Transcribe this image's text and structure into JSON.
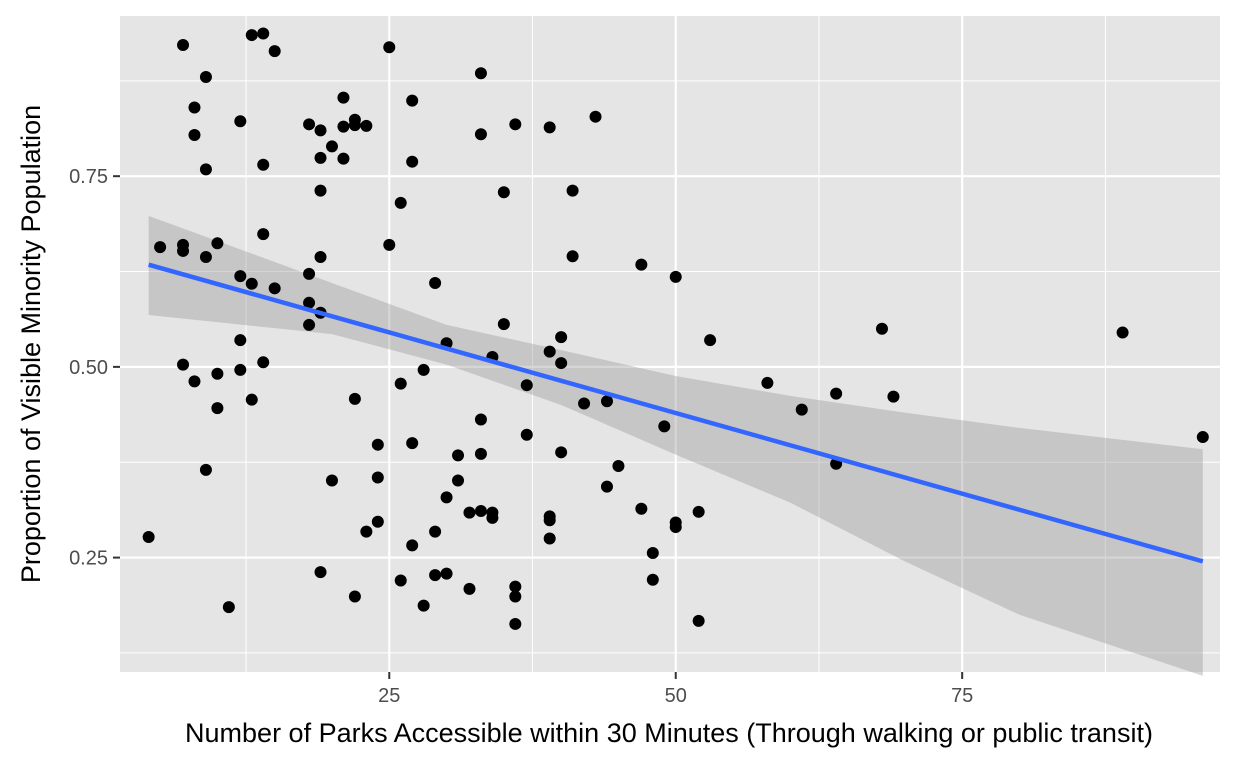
{
  "chart_data": {
    "type": "scatter",
    "xlabel": "Number of Parks Accessible within 30 Minutes (Through walking or public transit)",
    "ylabel": "Proportion of Visible Minority Population",
    "xlim": [
      1.5,
      97.5
    ],
    "ylim": [
      0.1,
      0.96
    ],
    "x_ticks": [
      25,
      50,
      75
    ],
    "x_tick_labels": [
      "25",
      "50",
      "75"
    ],
    "y_ticks": [
      0.25,
      0.5,
      0.75
    ],
    "y_tick_labels": [
      "0.25",
      "0.50",
      "0.75"
    ],
    "x_minor": [
      12.5,
      37.5,
      62.5,
      87.5
    ],
    "y_minor": [
      0.125,
      0.375,
      0.625,
      0.875
    ],
    "grid": true,
    "legend": "none",
    "colors": {
      "panel": "#e5e5e5",
      "grid": "#ffffff",
      "points": "#000000",
      "trend": "#3366ff",
      "ribbon": "#999999"
    },
    "trend": {
      "method": "linear regression with 95% confidence band",
      "x": [
        4,
        96
      ],
      "y": [
        0.634,
        0.245
      ],
      "band": [
        {
          "x": 4,
          "lo": 0.568,
          "hi": 0.698
        },
        {
          "x": 20,
          "lo": 0.543,
          "hi": 0.61
        },
        {
          "x": 30,
          "lo": 0.503,
          "hi": 0.555
        },
        {
          "x": 40,
          "lo": 0.45,
          "hi": 0.522
        },
        {
          "x": 50,
          "lo": 0.385,
          "hi": 0.488
        },
        {
          "x": 60,
          "lo": 0.322,
          "hi": 0.462
        },
        {
          "x": 70,
          "lo": 0.245,
          "hi": 0.44
        },
        {
          "x": 80,
          "lo": 0.175,
          "hi": 0.42
        },
        {
          "x": 96,
          "lo": 0.095,
          "hi": 0.392
        }
      ]
    },
    "points": [
      [
        4,
        0.277
      ],
      [
        5,
        0.657
      ],
      [
        7,
        0.922
      ],
      [
        7,
        0.66
      ],
      [
        7,
        0.652
      ],
      [
        7,
        0.503
      ],
      [
        8,
        0.84
      ],
      [
        8,
        0.804
      ],
      [
        8,
        0.481
      ],
      [
        9,
        0.88
      ],
      [
        9,
        0.759
      ],
      [
        9,
        0.644
      ],
      [
        9,
        0.365
      ],
      [
        10,
        0.662
      ],
      [
        10,
        0.491
      ],
      [
        10,
        0.446
      ],
      [
        11,
        0.185
      ],
      [
        12,
        0.822
      ],
      [
        12,
        0.619
      ],
      [
        12,
        0.535
      ],
      [
        12,
        0.496
      ],
      [
        13,
        0.935
      ],
      [
        13,
        0.609
      ],
      [
        13,
        0.457
      ],
      [
        14,
        0.937
      ],
      [
        14,
        0.765
      ],
      [
        14,
        0.674
      ],
      [
        14,
        0.506
      ],
      [
        15,
        0.914
      ],
      [
        15,
        0.603
      ],
      [
        18,
        0.818
      ],
      [
        18,
        0.622
      ],
      [
        18,
        0.584
      ],
      [
        18,
        0.555
      ],
      [
        19,
        0.81
      ],
      [
        19,
        0.774
      ],
      [
        19,
        0.731
      ],
      [
        19,
        0.644
      ],
      [
        19,
        0.571
      ],
      [
        19,
        0.231
      ],
      [
        20,
        0.789
      ],
      [
        20,
        0.351
      ],
      [
        21,
        0.853
      ],
      [
        21,
        0.815
      ],
      [
        21,
        0.773
      ],
      [
        22,
        0.824
      ],
      [
        22,
        0.817
      ],
      [
        22,
        0.458
      ],
      [
        22,
        0.199
      ],
      [
        23,
        0.816
      ],
      [
        23,
        0.284
      ],
      [
        24,
        0.398
      ],
      [
        24,
        0.355
      ],
      [
        24,
        0.297
      ],
      [
        25,
        0.919
      ],
      [
        25,
        0.66
      ],
      [
        26,
        0.715
      ],
      [
        26,
        0.478
      ],
      [
        26,
        0.22
      ],
      [
        27,
        0.849
      ],
      [
        27,
        0.769
      ],
      [
        27,
        0.4
      ],
      [
        27,
        0.266
      ],
      [
        28,
        0.496
      ],
      [
        28,
        0.187
      ],
      [
        29,
        0.61
      ],
      [
        29,
        0.284
      ],
      [
        29,
        0.227
      ],
      [
        30,
        0.531
      ],
      [
        30,
        0.329
      ],
      [
        30,
        0.229
      ],
      [
        31,
        0.384
      ],
      [
        31,
        0.351
      ],
      [
        32,
        0.309
      ],
      [
        32,
        0.209
      ],
      [
        33,
        0.885
      ],
      [
        33,
        0.805
      ],
      [
        33,
        0.431
      ],
      [
        33,
        0.386
      ],
      [
        33,
        0.311
      ],
      [
        34,
        0.513
      ],
      [
        34,
        0.309
      ],
      [
        34,
        0.302
      ],
      [
        35,
        0.729
      ],
      [
        35,
        0.556
      ],
      [
        36,
        0.818
      ],
      [
        36,
        0.212
      ],
      [
        36,
        0.199
      ],
      [
        36,
        0.163
      ],
      [
        37,
        0.476
      ],
      [
        37,
        0.411
      ],
      [
        39,
        0.814
      ],
      [
        39,
        0.52
      ],
      [
        39,
        0.304
      ],
      [
        39,
        0.299
      ],
      [
        39,
        0.275
      ],
      [
        40,
        0.539
      ],
      [
        40,
        0.505
      ],
      [
        40,
        0.388
      ],
      [
        41,
        0.731
      ],
      [
        41,
        0.645
      ],
      [
        42,
        0.452
      ],
      [
        43,
        0.828
      ],
      [
        44,
        0.455
      ],
      [
        44,
        0.343
      ],
      [
        45,
        0.37
      ],
      [
        47,
        0.634
      ],
      [
        47,
        0.314
      ],
      [
        48,
        0.256
      ],
      [
        48,
        0.221
      ],
      [
        49,
        0.422
      ],
      [
        50,
        0.618
      ],
      [
        50,
        0.296
      ],
      [
        50,
        0.29
      ],
      [
        52,
        0.31
      ],
      [
        52,
        0.167
      ],
      [
        53,
        0.535
      ],
      [
        58,
        0.479
      ],
      [
        61,
        0.444
      ],
      [
        64,
        0.465
      ],
      [
        64,
        0.373
      ],
      [
        68,
        0.55
      ],
      [
        69,
        0.461
      ],
      [
        89,
        0.545
      ],
      [
        96,
        0.408
      ]
    ]
  }
}
